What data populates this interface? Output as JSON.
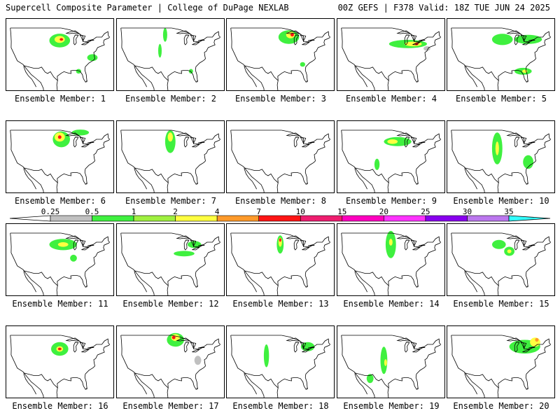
{
  "header": {
    "left_title": "Supercell Composite Parameter | College of DuPage NEXLAB",
    "right_title": "00Z GEFS | F378 Valid: 18Z TUE JUN 24 2025"
  },
  "colors": {
    "0.25": "#c0c0c0",
    "0.5": "#3ff03f",
    "1": "#9ff03f",
    "2": "#ffff40",
    "4": "#ff9a2a",
    "7": "#ff1515",
    "10": "#ee1d6f",
    "15": "#ff00bf",
    "20": "#ff33ff",
    "25": "#8800ee",
    "30": "#bb77ee",
    "35": "#33ffff"
  },
  "colorbar": {
    "ticks": [
      "0.25",
      "0.5",
      "1",
      "2",
      "4",
      "7",
      "10",
      "15",
      "20",
      "25",
      "30",
      "35"
    ]
  },
  "members": [
    {
      "label": "Ensemble Member: 1",
      "blobs": [
        {
          "c": "0.5",
          "lat": 43.5,
          "lon": -96,
          "rx": 6,
          "ry": 3
        },
        {
          "c": "2",
          "lat": 44,
          "lon": -96,
          "rx": 3,
          "ry": 1.5
        },
        {
          "c": "7",
          "lat": 44,
          "lon": -95,
          "rx": 1,
          "ry": 0.6
        },
        {
          "c": "0.5",
          "lat": 36,
          "lon": -77,
          "rx": 3,
          "ry": 1.5
        },
        {
          "c": "0.5",
          "lat": 30,
          "lon": -85,
          "rx": 1.5,
          "ry": 1
        }
      ]
    },
    {
      "label": "Ensemble Member: 2",
      "blobs": [
        {
          "c": "0.5",
          "lat": 46,
          "lon": -99,
          "rx": 1.2,
          "ry": 3
        },
        {
          "c": "0.5",
          "lat": 39,
          "lon": -102,
          "rx": 1,
          "ry": 3
        },
        {
          "c": "0.5",
          "lat": 30,
          "lon": -84,
          "rx": 1.2,
          "ry": 1
        }
      ]
    },
    {
      "label": "Ensemble Member: 3",
      "blobs": [
        {
          "c": "0.5",
          "lat": 45,
          "lon": -91,
          "rx": 6,
          "ry": 3
        },
        {
          "c": "2",
          "lat": 46,
          "lon": -90,
          "rx": 2.5,
          "ry": 1.5
        },
        {
          "c": "7",
          "lat": 46,
          "lon": -89,
          "rx": 1,
          "ry": 0.7
        },
        {
          "c": "0.5",
          "lat": 33,
          "lon": -83,
          "rx": 1.5,
          "ry": 1
        }
      ]
    },
    {
      "label": "Ensemble Member: 4",
      "blobs": [
        {
          "c": "0.5",
          "lat": 42,
          "lon": -86,
          "rx": 11,
          "ry": 1.8
        },
        {
          "c": "2",
          "lat": 42,
          "lon": -83,
          "rx": 5,
          "ry": 1
        },
        {
          "c": "7",
          "lat": 42,
          "lon": -81,
          "rx": 1,
          "ry": 0.6
        },
        {
          "c": "0.25",
          "lat": 40,
          "lon": -75,
          "rx": 2,
          "ry": 1
        }
      ]
    },
    {
      "label": "Ensemble Member: 5",
      "blobs": [
        {
          "c": "0.5",
          "lat": 44,
          "lon": -95,
          "rx": 6,
          "ry": 2.5
        },
        {
          "c": "0.5",
          "lat": 44,
          "lon": -80,
          "rx": 8,
          "ry": 2
        },
        {
          "c": "0.5",
          "lat": 30,
          "lon": -83,
          "rx": 5,
          "ry": 1.5
        },
        {
          "c": "2",
          "lat": 30,
          "lon": -82,
          "rx": 1.5,
          "ry": 0.7
        }
      ]
    },
    {
      "label": "Ensemble Member: 6",
      "blobs": [
        {
          "c": "0.5",
          "lat": 45,
          "lon": -95,
          "rx": 5,
          "ry": 3.5
        },
        {
          "c": "2",
          "lat": 46,
          "lon": -96,
          "rx": 3,
          "ry": 2
        },
        {
          "c": "7",
          "lat": 46,
          "lon": -96,
          "rx": 1,
          "ry": 0.8
        },
        {
          "c": "0.5",
          "lat": 48,
          "lon": -84,
          "rx": 5,
          "ry": 1.3
        }
      ]
    },
    {
      "label": "Ensemble Member: 7",
      "blobs": [
        {
          "c": "0.5",
          "lat": 44,
          "lon": -96,
          "rx": 3,
          "ry": 5
        },
        {
          "c": "2",
          "lat": 46,
          "lon": -96,
          "rx": 1.5,
          "ry": 2
        }
      ]
    },
    {
      "label": "Ensemble Member: 8",
      "blobs": []
    },
    {
      "label": "Ensemble Member: 9",
      "blobs": [
        {
          "c": "0.5",
          "lat": 44,
          "lon": -92,
          "rx": 8,
          "ry": 2
        },
        {
          "c": "2",
          "lat": 44,
          "lon": -95,
          "rx": 3,
          "ry": 1
        },
        {
          "c": "0.5",
          "lat": 34,
          "lon": -104,
          "rx": 1.5,
          "ry": 2.5
        }
      ]
    },
    {
      "label": "Ensemble Member: 10",
      "blobs": [
        {
          "c": "0.5",
          "lat": 41,
          "lon": -98,
          "rx": 3,
          "ry": 7
        },
        {
          "c": "2",
          "lat": 41,
          "lon": -98,
          "rx": 1,
          "ry": 3
        },
        {
          "c": "0.5",
          "lat": 35,
          "lon": -80,
          "rx": 3,
          "ry": 3
        }
      ]
    },
    {
      "label": "Ensemble Member: 11",
      "blobs": [
        {
          "c": "0.5",
          "lat": 44,
          "lon": -94,
          "rx": 8,
          "ry": 2.5
        },
        {
          "c": "2",
          "lat": 44,
          "lon": -94,
          "rx": 3,
          "ry": 1
        },
        {
          "c": "0.5",
          "lat": 38,
          "lon": -88,
          "rx": 2,
          "ry": 1.5
        }
      ]
    },
    {
      "label": "Ensemble Member: 12",
      "blobs": [
        {
          "c": "0.5",
          "lat": 40,
          "lon": -88,
          "rx": 6,
          "ry": 1.2
        },
        {
          "c": "0.5",
          "lat": 44,
          "lon": -82,
          "rx": 4,
          "ry": 1.5
        }
      ]
    },
    {
      "label": "Ensemble Member: 13",
      "blobs": [
        {
          "c": "0.5",
          "lat": 44,
          "lon": -96,
          "rx": 2,
          "ry": 4
        },
        {
          "c": "2",
          "lat": 45,
          "lon": -96,
          "rx": 1,
          "ry": 2
        },
        {
          "c": "7",
          "lat": 46,
          "lon": -96,
          "rx": 0.6,
          "ry": 0.8
        }
      ]
    },
    {
      "label": "Ensemble Member: 14",
      "blobs": [
        {
          "c": "0.5",
          "lat": 44,
          "lon": -96,
          "rx": 3,
          "ry": 6
        },
        {
          "c": "2",
          "lat": 45,
          "lon": -96,
          "rx": 1,
          "ry": 1.5
        }
      ]
    },
    {
      "label": "Ensemble Member: 15",
      "blobs": [
        {
          "c": "0.5",
          "lat": 44,
          "lon": -97,
          "rx": 4,
          "ry": 2
        },
        {
          "c": "0.5",
          "lat": 41,
          "lon": -91,
          "rx": 3,
          "ry": 2
        },
        {
          "c": "2",
          "lat": 41,
          "lon": -91,
          "rx": 1.2,
          "ry": 0.8
        }
      ]
    },
    {
      "label": "Ensemble Member: 16",
      "blobs": [
        {
          "c": "0.5",
          "lat": 43,
          "lon": -96,
          "rx": 5,
          "ry": 3
        },
        {
          "c": "2",
          "lat": 43,
          "lon": -96,
          "rx": 2,
          "ry": 1.2
        },
        {
          "c": "7",
          "lat": 43,
          "lon": -96,
          "rx": 1,
          "ry": 0.6
        }
      ]
    },
    {
      "label": "Ensemble Member: 17",
      "blobs": [
        {
          "c": "0.5",
          "lat": 47,
          "lon": -93,
          "rx": 5,
          "ry": 3
        },
        {
          "c": "2",
          "lat": 48,
          "lon": -93,
          "rx": 2.5,
          "ry": 1.5
        },
        {
          "c": "7",
          "lat": 48,
          "lon": -94,
          "rx": 1,
          "ry": 0.7
        },
        {
          "c": "0.25",
          "lat": 38,
          "lon": -80,
          "rx": 2,
          "ry": 2
        }
      ]
    },
    {
      "label": "Ensemble Member: 18",
      "blobs": [
        {
          "c": "0.5",
          "lat": 40,
          "lon": -104,
          "rx": 1.5,
          "ry": 5
        },
        {
          "c": "0.5",
          "lat": 44,
          "lon": -80,
          "rx": 4,
          "ry": 2
        }
      ]
    },
    {
      "label": "Ensemble Member: 19",
      "blobs": [
        {
          "c": "0.5",
          "lat": 38,
          "lon": -100,
          "rx": 2,
          "ry": 6
        },
        {
          "c": "2",
          "lat": 37,
          "lon": -99,
          "rx": 0.8,
          "ry": 1.5
        },
        {
          "c": "0.5",
          "lat": 30,
          "lon": -108,
          "rx": 2,
          "ry": 2
        }
      ]
    },
    {
      "label": "Ensemble Member: 20",
      "blobs": [
        {
          "c": "0.5",
          "lat": 44,
          "lon": -82,
          "rx": 9,
          "ry": 3
        },
        {
          "c": "2",
          "lat": 46,
          "lon": -76,
          "rx": 3,
          "ry": 2
        },
        {
          "c": "4",
          "lat": 47,
          "lon": -75,
          "rx": 1,
          "ry": 0.8
        }
      ]
    }
  ]
}
